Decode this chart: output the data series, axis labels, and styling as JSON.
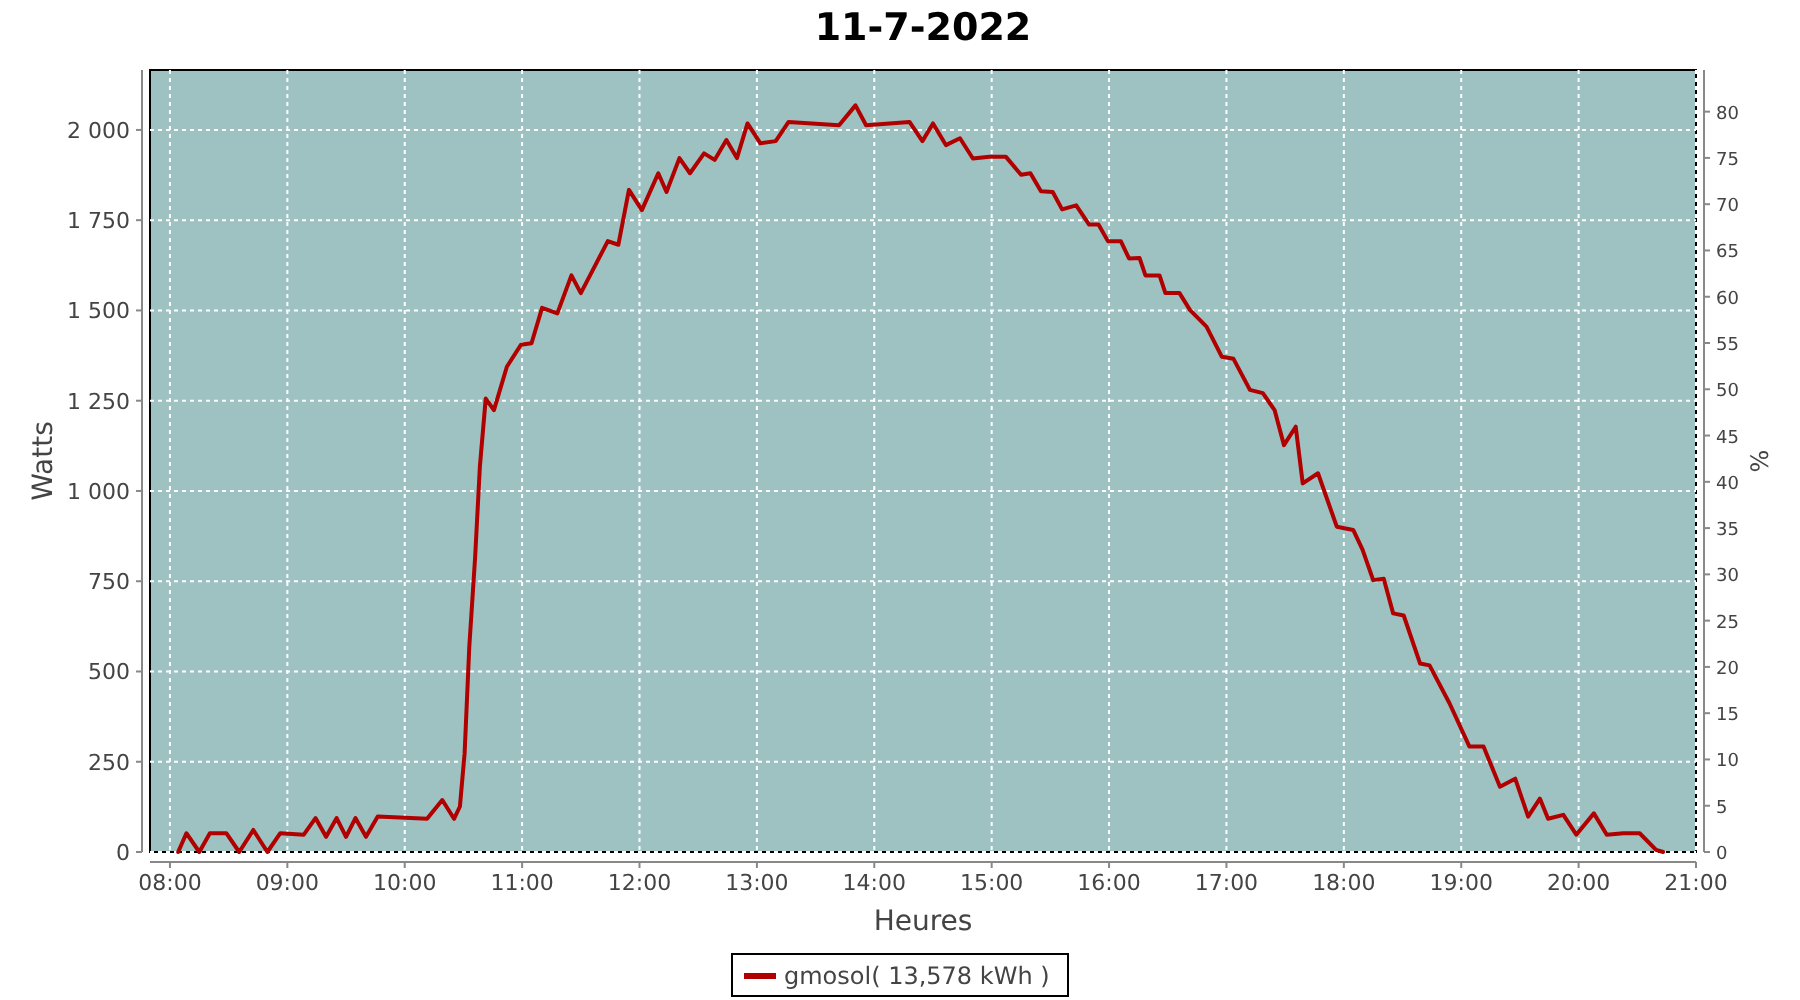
{
  "chart_data": {
    "type": "line",
    "title": "11-7-2022",
    "xlabel": "Heures",
    "ylabel": "Watts",
    "y2label": "%",
    "xlim": [
      7.83,
      21
    ],
    "xticks": [
      {
        "value": 8,
        "label": "08:00"
      },
      {
        "value": 9,
        "label": "09:00"
      },
      {
        "value": 10,
        "label": "10:00"
      },
      {
        "value": 11,
        "label": "11:00"
      },
      {
        "value": 12,
        "label": "12:00"
      },
      {
        "value": 13,
        "label": "13:00"
      },
      {
        "value": 14,
        "label": "14:00"
      },
      {
        "value": 15,
        "label": "15:00"
      },
      {
        "value": 16,
        "label": "16:00"
      },
      {
        "value": 17,
        "label": "17:00"
      },
      {
        "value": 18,
        "label": "18:00"
      },
      {
        "value": 19,
        "label": "19:00"
      },
      {
        "value": 20,
        "label": "20:00"
      },
      {
        "value": 21,
        "label": "21:00"
      }
    ],
    "ylim": [
      0,
      2166
    ],
    "yticks": [
      0,
      250,
      500,
      750,
      {
        "value": 1000,
        "label": "1 000"
      },
      {
        "value": 1250,
        "label": "1 250"
      },
      {
        "value": 1500,
        "label": "1 500"
      },
      {
        "value": 1750,
        "label": "1 750"
      },
      {
        "value": 2000,
        "label": "2 000"
      }
    ],
    "y2lim": [
      0,
      84.5
    ],
    "y2ticks": [
      0,
      5,
      10,
      15,
      20,
      25,
      30,
      35,
      40,
      45,
      50,
      55,
      60,
      65,
      70,
      75,
      80
    ],
    "grid": true,
    "legend": "bottom",
    "marker": "none",
    "line_style": "solid",
    "series": [
      {
        "name": "gmosol( 13,578 kWh )",
        "color": "#b00000",
        "x": [
          8.07,
          8.14,
          8.25,
          8.34,
          8.48,
          8.59,
          8.71,
          8.83,
          8.94,
          9.14,
          9.24,
          9.33,
          9.42,
          9.5,
          9.58,
          9.67,
          9.77,
          10.19,
          10.32,
          10.42,
          10.47,
          10.51,
          10.55,
          10.6,
          10.64,
          10.69,
          10.76,
          10.87,
          10.99,
          11.08,
          11.17,
          11.3,
          11.42,
          11.5,
          11.73,
          11.82,
          11.91,
          12.02,
          12.16,
          12.23,
          12.34,
          12.43,
          12.55,
          12.64,
          12.74,
          12.83,
          12.92,
          13.03,
          13.16,
          13.27,
          13.7,
          13.84,
          13.93,
          14.3,
          14.41,
          14.5,
          14.61,
          14.73,
          14.84,
          14.98,
          15.12,
          15.25,
          15.33,
          15.42,
          15.52,
          15.6,
          15.72,
          15.83,
          15.91,
          15.99,
          16.1,
          16.17,
          16.26,
          16.31,
          16.43,
          16.48,
          16.6,
          16.69,
          16.83,
          16.96,
          17.06,
          17.2,
          17.31,
          17.41,
          17.49,
          17.59,
          17.65,
          17.78,
          17.94,
          18.08,
          18.16,
          18.25,
          18.34,
          18.42,
          18.51,
          18.65,
          18.73,
          18.9,
          19.07,
          19.19,
          19.33,
          19.46,
          19.57,
          19.67,
          19.74,
          19.87,
          19.98,
          20.13,
          20.24,
          20.38,
          20.52,
          20.66,
          20.72
        ],
        "values": [
          0,
          52,
          0,
          52,
          52,
          0,
          61,
          0,
          52,
          48,
          94,
          42,
          94,
          42,
          94,
          42,
          98,
          92,
          144,
          92,
          126,
          273,
          569,
          818,
          1067,
          1256,
          1224,
          1344,
          1405,
          1409,
          1507,
          1492,
          1597,
          1548,
          1692,
          1682,
          1834,
          1778,
          1880,
          1828,
          1922,
          1880,
          1935,
          1917,
          1972,
          1922,
          2018,
          1963,
          1969,
          2022,
          2013,
          2068,
          2013,
          2022,
          1969,
          2018,
          1958,
          1977,
          1921,
          1926,
          1926,
          1876,
          1880,
          1830,
          1828,
          1780,
          1791,
          1738,
          1738,
          1692,
          1692,
          1644,
          1645,
          1597,
          1597,
          1548,
          1548,
          1501,
          1455,
          1372,
          1366,
          1280,
          1271,
          1224,
          1127,
          1178,
          1021,
          1049,
          901,
          892,
          837,
          753,
          757,
          661,
          655,
          522,
          517,
          412,
          292,
          292,
          181,
          203,
          98,
          148,
          92,
          103,
          48,
          107,
          48,
          52,
          52,
          6,
          0
        ]
      }
    ]
  }
}
